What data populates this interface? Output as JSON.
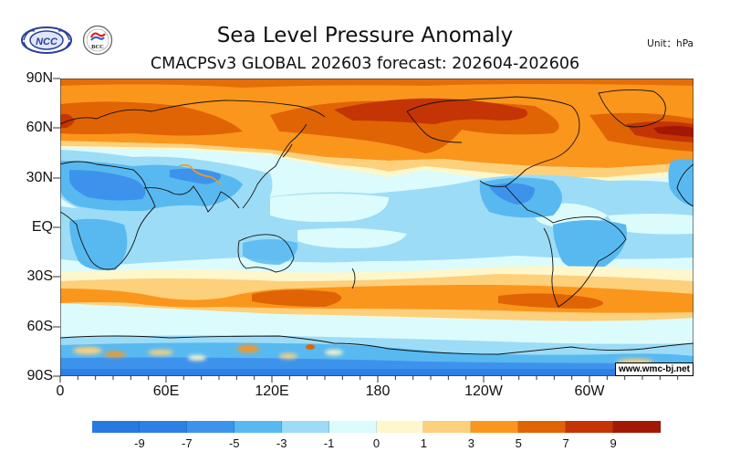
{
  "header": {
    "title": "Sea Level Pressure Anomaly",
    "subtitle": "CMACPSv3 GLOBAL 202603 forecast: 202604-202606",
    "unit": "Unit：hPa",
    "logos": [
      {
        "name": "NCC",
        "text": "NCC"
      },
      {
        "name": "BCC",
        "text": "BCC"
      }
    ]
  },
  "map": {
    "y_ticks": [
      "90N",
      "60N",
      "30N",
      "EQ",
      "30S",
      "60S",
      "90S"
    ],
    "x_ticks": [
      "0",
      "60E",
      "120E",
      "180",
      "120W",
      "60W"
    ],
    "watermark": "www.wmc-bj.net"
  },
  "colorbar": {
    "colors": [
      "#2679e0",
      "#2c80e6",
      "#3d93ec",
      "#58b9f1",
      "#9cdcf6",
      "#dcfbfc",
      "#fef7cb",
      "#fdd07c",
      "#fb961c",
      "#e06404",
      "#c43404",
      "#a31804"
    ],
    "labels": [
      "-9",
      "-7",
      "-5",
      "-3",
      "-1",
      "0",
      "1",
      "3",
      "5",
      "7",
      "9"
    ]
  }
}
